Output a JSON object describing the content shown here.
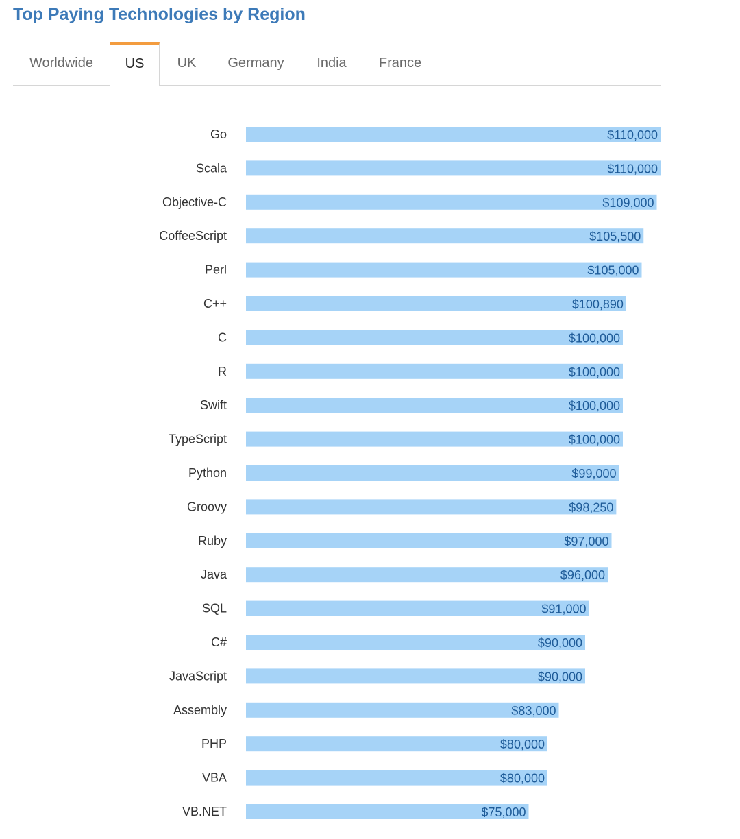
{
  "title": "Top Paying Technologies by Region",
  "tabs": [
    {
      "label": "Worldwide",
      "active": false
    },
    {
      "label": "US",
      "active": true
    },
    {
      "label": "UK",
      "active": false
    },
    {
      "label": "Germany",
      "active": false
    },
    {
      "label": "India",
      "active": false
    },
    {
      "label": "France",
      "active": false
    }
  ],
  "colors": {
    "title": "#3d7ab8",
    "active_tab_accent": "#f39c3f",
    "bar": "#a6d3f7",
    "value_label": "#1f5c99"
  },
  "chart_data": {
    "type": "bar",
    "orientation": "horizontal",
    "title": "",
    "xlabel": "",
    "ylabel": "",
    "grid": false,
    "categories": [
      "Go",
      "Scala",
      "Objective-C",
      "CoffeeScript",
      "Perl",
      "C++",
      "C",
      "R",
      "Swift",
      "TypeScript",
      "Python",
      "Groovy",
      "Ruby",
      "Java",
      "SQL",
      "C#",
      "JavaScript",
      "Assembly",
      "PHP",
      "VBA",
      "VB.NET"
    ],
    "values": [
      110000,
      110000,
      109000,
      105500,
      105000,
      100890,
      100000,
      100000,
      100000,
      100000,
      99000,
      98250,
      97000,
      96000,
      91000,
      90000,
      90000,
      83000,
      80000,
      80000,
      75000
    ],
    "value_labels": [
      "$110,000",
      "$110,000",
      "$109,000",
      "$105,500",
      "$105,000",
      "$100,890",
      "$100,000",
      "$100,000",
      "$100,000",
      "$100,000",
      "$99,000",
      "$98,250",
      "$97,000",
      "$96,000",
      "$91,000",
      "$90,000",
      "$90,000",
      "$83,000",
      "$80,000",
      "$80,000",
      "$75,000"
    ],
    "xlim": [
      0,
      110000
    ]
  }
}
